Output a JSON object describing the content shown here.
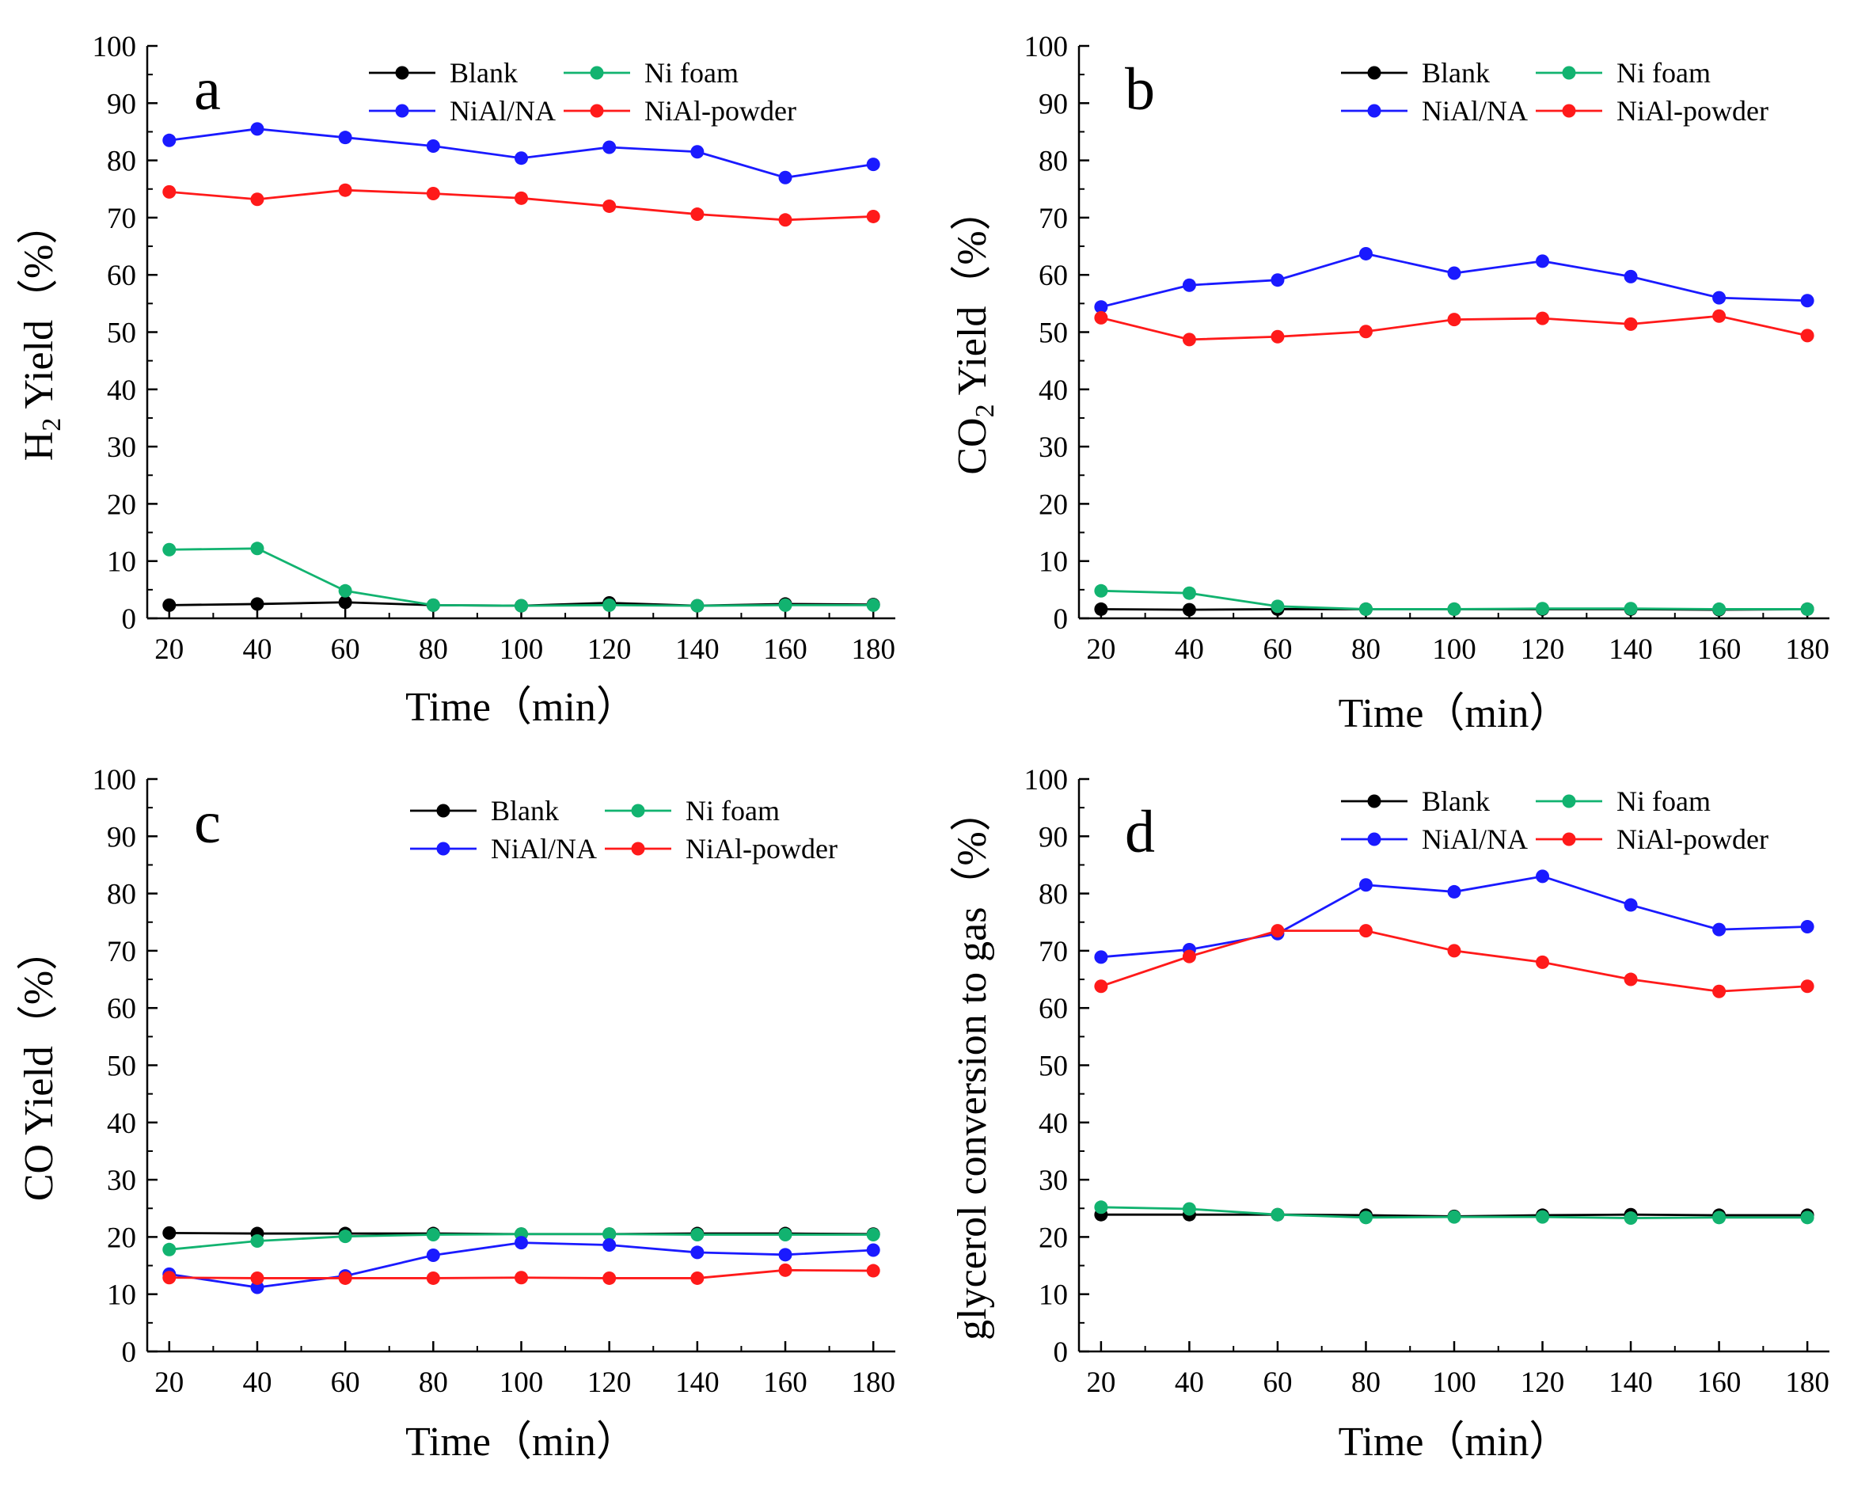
{
  "chart_data": [
    {
      "type": "line",
      "panel_label": "a",
      "xlabel": "Time（min）",
      "ylabel_parts": [
        "H",
        "2",
        " Yield（%）"
      ],
      "x": [
        20,
        40,
        60,
        80,
        100,
        120,
        140,
        160,
        180
      ],
      "xlim": [
        15,
        185
      ],
      "ylim": [
        0,
        100
      ],
      "xticks": [
        "20",
        "40",
        "60",
        "80",
        "100",
        "120",
        "140",
        "160",
        "180"
      ],
      "yticks": [
        "0",
        "10",
        "20",
        "30",
        "40",
        "50",
        "60",
        "70",
        "80",
        "90",
        "100"
      ],
      "legend": {
        "position": "top-right"
      },
      "series": [
        {
          "name": "Blank",
          "color": "#000000",
          "values": [
            2.3,
            2.5,
            2.8,
            2.3,
            2.2,
            2.7,
            2.2,
            2.5,
            2.4
          ]
        },
        {
          "name": "Ni foam",
          "color": "#12b370",
          "values": [
            12.0,
            12.2,
            4.8,
            2.3,
            2.2,
            2.3,
            2.2,
            2.3,
            2.3
          ]
        },
        {
          "name": "NiAl/NA",
          "color": "#1a1aff",
          "values": [
            83.5,
            85.5,
            84.0,
            82.5,
            80.4,
            82.3,
            81.5,
            77.0,
            79.3
          ]
        },
        {
          "name": "NiAl-powder",
          "color": "#ff1a1a",
          "values": [
            74.5,
            73.2,
            74.8,
            74.2,
            73.4,
            72.0,
            70.6,
            69.6,
            70.2
          ]
        }
      ]
    },
    {
      "type": "line",
      "panel_label": "b",
      "xlabel": "Time（min）",
      "ylabel_parts": [
        "CO",
        "2",
        " Yield（%）"
      ],
      "x": [
        20,
        40,
        60,
        80,
        100,
        120,
        140,
        160,
        180
      ],
      "xlim": [
        15,
        185
      ],
      "ylim": [
        0,
        100
      ],
      "xticks": [
        "20",
        "40",
        "60",
        "80",
        "100",
        "120",
        "140",
        "160",
        "180"
      ],
      "yticks": [
        "0",
        "10",
        "20",
        "30",
        "40",
        "50",
        "60",
        "70",
        "80",
        "90",
        "100"
      ],
      "legend": {
        "position": "top-right"
      },
      "series": [
        {
          "name": "Blank",
          "color": "#000000",
          "values": [
            1.6,
            1.5,
            1.6,
            1.6,
            1.6,
            1.6,
            1.6,
            1.5,
            1.6
          ]
        },
        {
          "name": "Ni foam",
          "color": "#12b370",
          "values": [
            4.8,
            4.4,
            2.1,
            1.6,
            1.6,
            1.7,
            1.7,
            1.6,
            1.6
          ]
        },
        {
          "name": "NiAl/NA",
          "color": "#1a1aff",
          "values": [
            54.4,
            58.2,
            59.1,
            63.7,
            60.3,
            62.4,
            59.7,
            56.0,
            55.5
          ]
        },
        {
          "name": "NiAl-powder",
          "color": "#ff1a1a",
          "values": [
            52.5,
            48.7,
            49.2,
            50.1,
            52.2,
            52.4,
            51.4,
            52.8,
            49.4
          ]
        }
      ]
    },
    {
      "type": "line",
      "panel_label": "c",
      "xlabel": "Time（min）",
      "ylabel_parts": [
        "CO Yield（%）",
        "",
        ""
      ],
      "x": [
        20,
        40,
        60,
        80,
        100,
        120,
        140,
        160,
        180
      ],
      "xlim": [
        15,
        185
      ],
      "ylim": [
        0,
        100
      ],
      "xticks": [
        "20",
        "40",
        "60",
        "80",
        "100",
        "120",
        "140",
        "160",
        "180"
      ],
      "yticks": [
        "0",
        "10",
        "20",
        "30",
        "40",
        "50",
        "60",
        "70",
        "80",
        "90",
        "100"
      ],
      "legend": {
        "position": "top-right"
      },
      "series": [
        {
          "name": "Blank",
          "color": "#000000",
          "values": [
            20.7,
            20.6,
            20.6,
            20.6,
            20.5,
            20.5,
            20.6,
            20.6,
            20.5
          ]
        },
        {
          "name": "Ni foam",
          "color": "#12b370",
          "values": [
            17.8,
            19.3,
            20.1,
            20.4,
            20.5,
            20.5,
            20.4,
            20.4,
            20.4
          ]
        },
        {
          "name": "NiAl/NA",
          "color": "#1a1aff",
          "values": [
            13.5,
            11.2,
            13.2,
            16.8,
            19.0,
            18.6,
            17.3,
            16.9,
            17.7
          ]
        },
        {
          "name": "NiAl-powder",
          "color": "#ff1a1a",
          "values": [
            12.9,
            12.8,
            12.8,
            12.8,
            12.9,
            12.8,
            12.8,
            14.2,
            14.1
          ]
        }
      ]
    },
    {
      "type": "line",
      "panel_label": "d",
      "xlabel": "Time（min）",
      "ylabel_parts": [
        "glycerol conversion to gas（%）",
        "",
        ""
      ],
      "x": [
        20,
        40,
        60,
        80,
        100,
        120,
        140,
        160,
        180
      ],
      "xlim": [
        15,
        185
      ],
      "ylim": [
        0,
        100
      ],
      "xticks": [
        "20",
        "40",
        "60",
        "80",
        "100",
        "120",
        "140",
        "160",
        "180"
      ],
      "yticks": [
        "0",
        "10",
        "20",
        "30",
        "40",
        "50",
        "60",
        "70",
        "80",
        "90",
        "100"
      ],
      "legend": {
        "position": "top-right"
      },
      "series": [
        {
          "name": "Blank",
          "color": "#000000",
          "values": [
            23.9,
            23.9,
            23.9,
            23.8,
            23.6,
            23.8,
            23.9,
            23.8,
            23.8
          ]
        },
        {
          "name": "Ni foam",
          "color": "#12b370",
          "values": [
            25.2,
            24.9,
            23.9,
            23.4,
            23.5,
            23.5,
            23.3,
            23.4,
            23.4
          ]
        },
        {
          "name": "NiAl/NA",
          "color": "#1a1aff",
          "values": [
            68.9,
            70.2,
            73.0,
            81.5,
            80.3,
            83.0,
            78.0,
            73.7,
            74.2
          ]
        },
        {
          "name": "NiAl-powder",
          "color": "#ff1a1a",
          "values": [
            63.8,
            69.0,
            73.5,
            73.5,
            70.0,
            68.0,
            65.0,
            62.9,
            63.8
          ]
        }
      ]
    }
  ]
}
